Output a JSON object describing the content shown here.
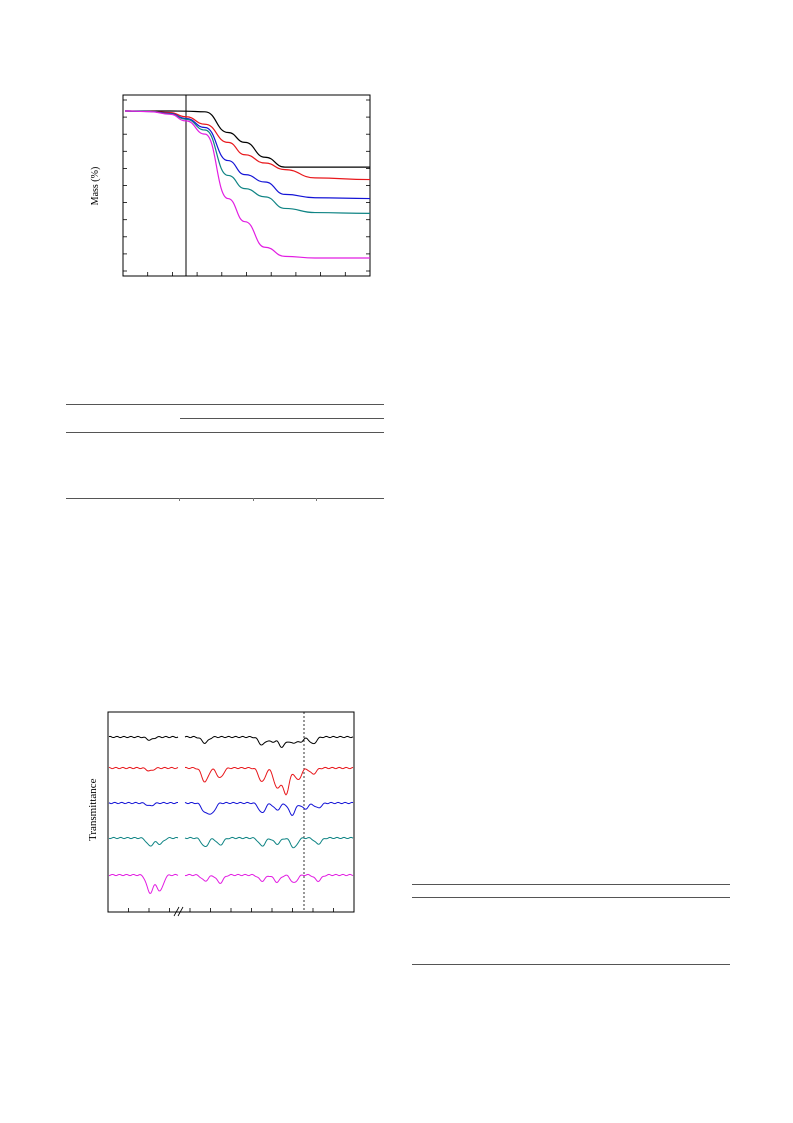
{
  "figure1": {
    "ylabel": "Mass (%)",
    "chart_data": {
      "type": "line",
      "ylabel": "Mass (%)",
      "grid": false,
      "series": [
        {
          "color": "#000000",
          "values": [
            100.0,
            100.0,
            100.0,
            99.9,
            99.5,
            87.0,
            81.0,
            72.0,
            66.0,
            66.0,
            66.0
          ]
        },
        {
          "color": "#e8181c",
          "values": [
            100.0,
            99.8,
            99.0,
            96.5,
            92.0,
            81.0,
            73.5,
            68.5,
            64.5,
            59.5,
            58.5
          ]
        },
        {
          "color": "#1414d6",
          "values": [
            100.0,
            99.7,
            98.5,
            95.5,
            90.0,
            70.0,
            61.5,
            57.0,
            49.5,
            47.5,
            47.0
          ]
        },
        {
          "color": "#0f8484",
          "values": [
            100.0,
            99.7,
            98.3,
            95.0,
            88.5,
            61.0,
            53.0,
            48.0,
            41.0,
            38.5,
            38.0
          ]
        },
        {
          "color": "#e21de2",
          "values": [
            100.0,
            99.6,
            98.0,
            94.0,
            86.0,
            47.0,
            33.0,
            17.5,
            12.0,
            11.0,
            11.0
          ]
        }
      ]
    }
  },
  "figure2": {
    "ylabel": "Transmittance",
    "chart_data": {
      "type": "line",
      "ylabel": "Transmittance",
      "grid": false,
      "broken_x_axis": true,
      "series": [
        {
          "color": "#000000"
        },
        {
          "color": "#e8181c"
        },
        {
          "color": "#1414d6"
        },
        {
          "color": "#0f8484"
        },
        {
          "color": "#e21de2"
        }
      ]
    }
  }
}
